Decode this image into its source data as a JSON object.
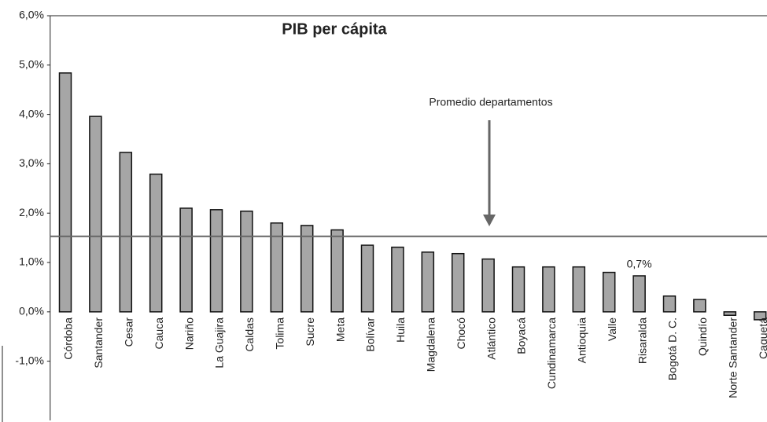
{
  "chart_data": {
    "type": "bar",
    "title": "PIB per cápita",
    "categories": [
      "Córdoba",
      "Santander",
      "Cesar",
      "Cauca",
      "Nariño",
      "La Guajira",
      "Caldas",
      "Tolima",
      "Sucre",
      "Meta",
      "Bolívar",
      "Huila",
      "Magdalena",
      "Chocó",
      "Atlántico",
      "Boyacá",
      "Cundinamarca",
      "Antioquia",
      "Valle",
      "Risaralda",
      "Bogotá D. C.",
      "Quindío",
      "Norte Santander",
      "Caquetá"
    ],
    "values": [
      4.84,
      3.96,
      3.23,
      2.79,
      2.1,
      2.07,
      2.04,
      1.8,
      1.75,
      1.66,
      1.35,
      1.31,
      1.21,
      1.18,
      1.07,
      0.91,
      0.91,
      0.91,
      0.8,
      0.73,
      0.32,
      0.25,
      -0.07,
      -0.16
    ],
    "value_labels": [
      null,
      null,
      null,
      null,
      null,
      null,
      null,
      null,
      null,
      null,
      null,
      null,
      null,
      null,
      null,
      null,
      null,
      null,
      null,
      "0,7%",
      null,
      null,
      null,
      null
    ],
    "color": "#a6a6a6",
    "ylim": [
      -2.2,
      6
    ],
    "yticks": [
      {
        "value": -1,
        "label": "-1,0%"
      },
      {
        "value": 0,
        "label": "0,0%"
      },
      {
        "value": 1,
        "label": "1,0%"
      },
      {
        "value": 2,
        "label": "2,0%"
      },
      {
        "value": 3,
        "label": "3,0%"
      },
      {
        "value": 4,
        "label": "4,0%"
      },
      {
        "value": 5,
        "label": "5,0%"
      },
      {
        "value": 6,
        "label": "6,0%"
      }
    ],
    "average": 1.53,
    "annotation": "Promedio departamentos",
    "grid": false
  }
}
